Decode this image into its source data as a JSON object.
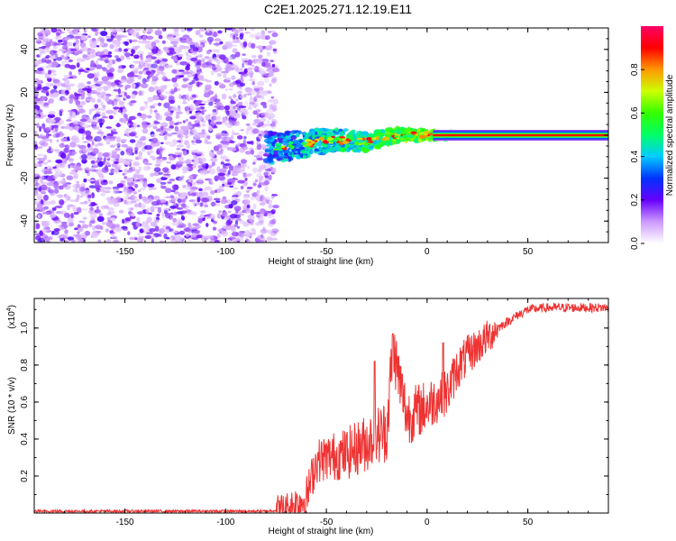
{
  "title": "C2E1.2025.271.12.19.E11",
  "chart_data": [
    {
      "type": "heatmap",
      "title": "C2E1.2025.271.12.19.E11",
      "xlabel": "Height of straight line (km)",
      "ylabel": "Frequency (Hz)",
      "xlim": [
        -195,
        90
      ],
      "ylim": [
        -50,
        50
      ],
      "xticks": [
        -150,
        -100,
        -50,
        0,
        50
      ],
      "yticks": [
        -40,
        -20,
        0,
        20,
        40
      ],
      "colorbar": {
        "label": "Normalized spectral amplitude",
        "range": [
          0.0,
          1.0
        ],
        "ticks": [
          0.0,
          0.2,
          0.4,
          0.6,
          0.8
        ]
      },
      "description_points": {
        "noise_region_x_km": [
          -195,
          -80
        ],
        "transition_x_km": [
          -80,
          15
        ],
        "coherent_tone_x_km": [
          15,
          90
        ],
        "tone_frequency_hz": 0,
        "track_points": [
          [
            -80,
            -6
          ],
          [
            -60,
            -4
          ],
          [
            -45,
            -2
          ],
          [
            -30,
            -3
          ],
          [
            -15,
            0
          ],
          [
            0,
            0
          ],
          [
            15,
            0
          ],
          [
            90,
            0
          ]
        ]
      }
    },
    {
      "type": "line",
      "xlabel": "Height of straight line (km)",
      "ylabel": "SNR (10 * v/v)",
      "y_multiplier": "(x10",
      "y_exponent": "4",
      "xlim": [
        -195,
        90
      ],
      "ylim": [
        0,
        1.16
      ],
      "xticks": [
        -150,
        -100,
        -50,
        0,
        50
      ],
      "yticks": [
        0.2,
        0.4,
        0.6,
        0.8,
        1.0
      ],
      "series": [
        {
          "name": "SNR",
          "color": "#ee3333",
          "x": [
            -195,
            -150,
            -100,
            -80,
            -70,
            -60,
            -55,
            -50,
            -40,
            -30,
            -20,
            -17,
            -10,
            0,
            5,
            10,
            15,
            20,
            30,
            35,
            45,
            50,
            60,
            70,
            90
          ],
          "y": [
            0.01,
            0.01,
            0.01,
            0.01,
            0.02,
            0.08,
            0.28,
            0.3,
            0.32,
            0.38,
            0.45,
            0.9,
            0.52,
            0.58,
            0.62,
            0.65,
            0.78,
            0.85,
            0.95,
            1.0,
            1.07,
            1.1,
            1.11,
            1.11,
            1.11
          ]
        }
      ]
    }
  ]
}
